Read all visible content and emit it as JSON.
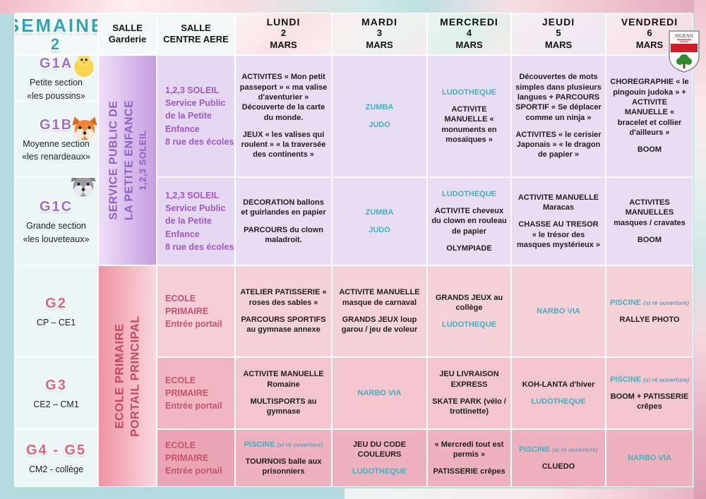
{
  "title": {
    "word": "SEMAINE",
    "number": "2"
  },
  "headers": {
    "garderie": [
      "SALLE",
      "Garderie"
    ],
    "centre": [
      "SALLE",
      "CENTRE AERE"
    ]
  },
  "days": [
    {
      "name": "LUNDI",
      "num": "2",
      "month": "MARS"
    },
    {
      "name": "MARDI",
      "num": "3",
      "month": "MARS"
    },
    {
      "name": "MERCREDI",
      "num": "4",
      "month": "MARS"
    },
    {
      "name": "JEUDI",
      "num": "5",
      "month": "MARS"
    },
    {
      "name": "VENDREDI",
      "num": "6",
      "month": "MARS"
    }
  ],
  "logo": {
    "name": "SIGEAN"
  },
  "groups": [
    {
      "id": "G1A",
      "lines": [
        "Petite section",
        "«les poussins»"
      ],
      "animal": "chick"
    },
    {
      "id": "G1B",
      "lines": [
        "Moyenne section",
        "«les renardeaux»"
      ],
      "animal": "fox"
    },
    {
      "id": "G1C",
      "lines": [
        "Grande section",
        "«les louveteaux»"
      ],
      "animal": "wolf"
    },
    {
      "id": "G2",
      "lines": [
        "CP – CE1"
      ]
    },
    {
      "id": "G3",
      "lines": [
        "CE2 – CM1"
      ]
    },
    {
      "id": "G4 - G5",
      "lines": [
        "CM2 - collège"
      ]
    }
  ],
  "panels": {
    "petite_enfance": [
      "SERVICE PUBLIC DE",
      "LA PETITE ENFANCE",
      "1,2,3 SOLEIL"
    ],
    "ecole_primaire": [
      "ECOLE PRIMAIRE",
      "PORTAIL PRINCIPAL"
    ]
  },
  "centre_cells": [
    {
      "lines": [
        "1,2,3 SOLEIL",
        "Service Public",
        "de la Petite",
        "Enfance",
        "8 rue des écoles"
      ]
    },
    {
      "lines": [
        "1,2,3 SOLEIL",
        "Service Public",
        "de la Petite",
        "Enfance",
        "8 rue des écoles"
      ]
    },
    {
      "lines": [
        "ECOLE",
        "PRIMAIRE",
        "Entrée portail"
      ]
    },
    {
      "lines": [
        "ECOLE",
        "PRIMAIRE",
        "Entrée portail"
      ]
    },
    {
      "lines": [
        "ECOLE",
        "PRIMAIRE",
        "Entrée portail"
      ]
    }
  ],
  "colors": {
    "teal_activity": "#3eb2c2",
    "purple_text": "#8f5fc2",
    "pink_text": "#c34a60",
    "page_bg": "#b3dbde"
  },
  "schedule": {
    "rows": [
      {
        "group": "G1A + G1B",
        "cells": [
          [
            [
              {
                "t": "ACTIVITES « Mon petit passeport » « ma valise d'aventurier » Découverte de la carte du monde.",
                "c": "d"
              }
            ],
            [
              {
                "t": "JEUX « les valises qui roulent » « la traversée des continents »",
                "c": "d"
              }
            ]
          ],
          [
            [
              {
                "t": "ZUMBA",
                "c": "t"
              }
            ],
            [
              {
                "t": "JUDO",
                "c": "t"
              }
            ]
          ],
          [
            [
              {
                "t": "LUDOTHEQUE",
                "c": "t"
              }
            ],
            [
              {
                "t": "ACTIVITE MANUELLE « monuments en mosaïques »",
                "c": "d"
              }
            ]
          ],
          [
            [
              {
                "t": "Découvertes de mots simples dans plusieurs langues + PARCOURS SPORTIF « Se déplacer comme un ninja »",
                "c": "d"
              }
            ],
            [
              {
                "t": "ACTIVITES « le cerisier Japonais » « le dragon de papier »",
                "c": "d"
              }
            ]
          ],
          [
            [
              {
                "t": "CHOREGRAPHIE « le pingouin judoka » + ACTIVITE MANUELLE « bracelet et collier d'ailleurs »",
                "c": "d"
              }
            ],
            [
              {
                "t": "BOOM",
                "c": "d"
              }
            ]
          ]
        ]
      },
      {
        "group": "G1C",
        "cells": [
          [
            [
              {
                "t": "DECORATION ballons et guirlandes en papier",
                "c": "d"
              }
            ],
            [
              {
                "t": "PARCOURS du clown maladroit.",
                "c": "d"
              }
            ]
          ],
          [
            [
              {
                "t": "ZUMBA",
                "c": "t"
              }
            ],
            [
              {
                "t": "JUDO",
                "c": "t"
              }
            ]
          ],
          [
            [
              {
                "t": "LUDOTHEQUE",
                "c": "t"
              }
            ],
            [
              {
                "t": "ACTIVITE cheveux du clown en rouleau de papier",
                "c": "d"
              }
            ],
            [
              {
                "t": "OLYMPIADE",
                "c": "d"
              }
            ]
          ],
          [
            [
              {
                "t": "ACTIVITE MANUELLE Maracas",
                "c": "d"
              }
            ],
            [
              {
                "t": "CHASSE AU TRESOR « le trésor des masques mystérieux »",
                "c": "d"
              }
            ]
          ],
          [
            [
              {
                "t": "ACTIVITES MANUELLES masques / cravates",
                "c": "d"
              }
            ],
            [
              {
                "t": "BOOM",
                "c": "d"
              }
            ]
          ]
        ]
      },
      {
        "group": "G2",
        "cells": [
          [
            [
              {
                "t": "ATELIER PATISSERIE « roses des sables »",
                "c": "d"
              }
            ],
            [
              {
                "t": "PARCOURS SPORTIFS au gymnase annexe",
                "c": "d"
              }
            ]
          ],
          [
            [
              {
                "t": "ACTIVITE MANUELLE masque de carnaval",
                "c": "d"
              }
            ],
            [
              {
                "t": "GRANDS JEUX loup garou / jeu de voleur",
                "c": "d"
              }
            ]
          ],
          [
            [
              {
                "t": "GRANDS JEUX au collège",
                "c": "d"
              }
            ],
            [
              {
                "t": "LUDOTHEQUE",
                "c": "t"
              }
            ]
          ],
          [
            [
              {
                "t": "NARBO VIA",
                "c": "t"
              }
            ]
          ],
          [
            [
              {
                "t": "PISCINE ",
                "c": "t"
              },
              {
                "t": "(si ré ouverture)",
                "c": "n"
              }
            ],
            [
              {
                "t": "RALLYE PHOTO",
                "c": "d"
              }
            ]
          ]
        ]
      },
      {
        "group": "G3",
        "cells": [
          [
            [
              {
                "t": "ACTIVITE MANUELLE Romaine",
                "c": "d"
              }
            ],
            [
              {
                "t": "MULTISPORTS au gymnase",
                "c": "d"
              }
            ]
          ],
          [
            [
              {
                "t": "NARBO VIA",
                "c": "t"
              }
            ]
          ],
          [
            [
              {
                "t": "JEU LIVRAISON EXPRESS",
                "c": "d"
              }
            ],
            [
              {
                "t": "SKATE PARK (vélo / trottinette)",
                "c": "d"
              }
            ]
          ],
          [
            [
              {
                "t": "KOH-LANTA d'hiver",
                "c": "d"
              }
            ],
            [
              {
                "t": "LUDOTHEQUE",
                "c": "t"
              }
            ]
          ],
          [
            [
              {
                "t": "PISCINE ",
                "c": "t"
              },
              {
                "t": "(si ré ouverture)",
                "c": "n"
              }
            ],
            [
              {
                "t": "BOOM + PATISSERIE crêpes",
                "c": "d"
              }
            ]
          ]
        ]
      },
      {
        "group": "G4 - G5",
        "cells": [
          [
            [
              {
                "t": "PISCINE ",
                "c": "t"
              },
              {
                "t": "(si ré ouverture)",
                "c": "n"
              }
            ],
            [
              {
                "t": "TOURNOIS balle aux prisonniers",
                "c": "d"
              }
            ]
          ],
          [
            [
              {
                "t": "JEU DU CODE COULEURS",
                "c": "d"
              }
            ],
            [
              {
                "t": "LUDOTHEQUE",
                "c": "t"
              }
            ]
          ],
          [
            [
              {
                "t": "« Mercredi tout est permis »",
                "c": "d"
              }
            ],
            [
              {
                "t": "PATISSERIE crêpes",
                "c": "d"
              }
            ]
          ],
          [
            [
              {
                "t": "PISCINE ",
                "c": "t"
              },
              {
                "t": "(si ré ouverture)",
                "c": "n"
              }
            ],
            [
              {
                "t": "CLUEDO",
                "c": "d"
              }
            ]
          ],
          [
            [
              {
                "t": "NARBO VIA",
                "c": "t"
              }
            ]
          ]
        ]
      }
    ]
  }
}
